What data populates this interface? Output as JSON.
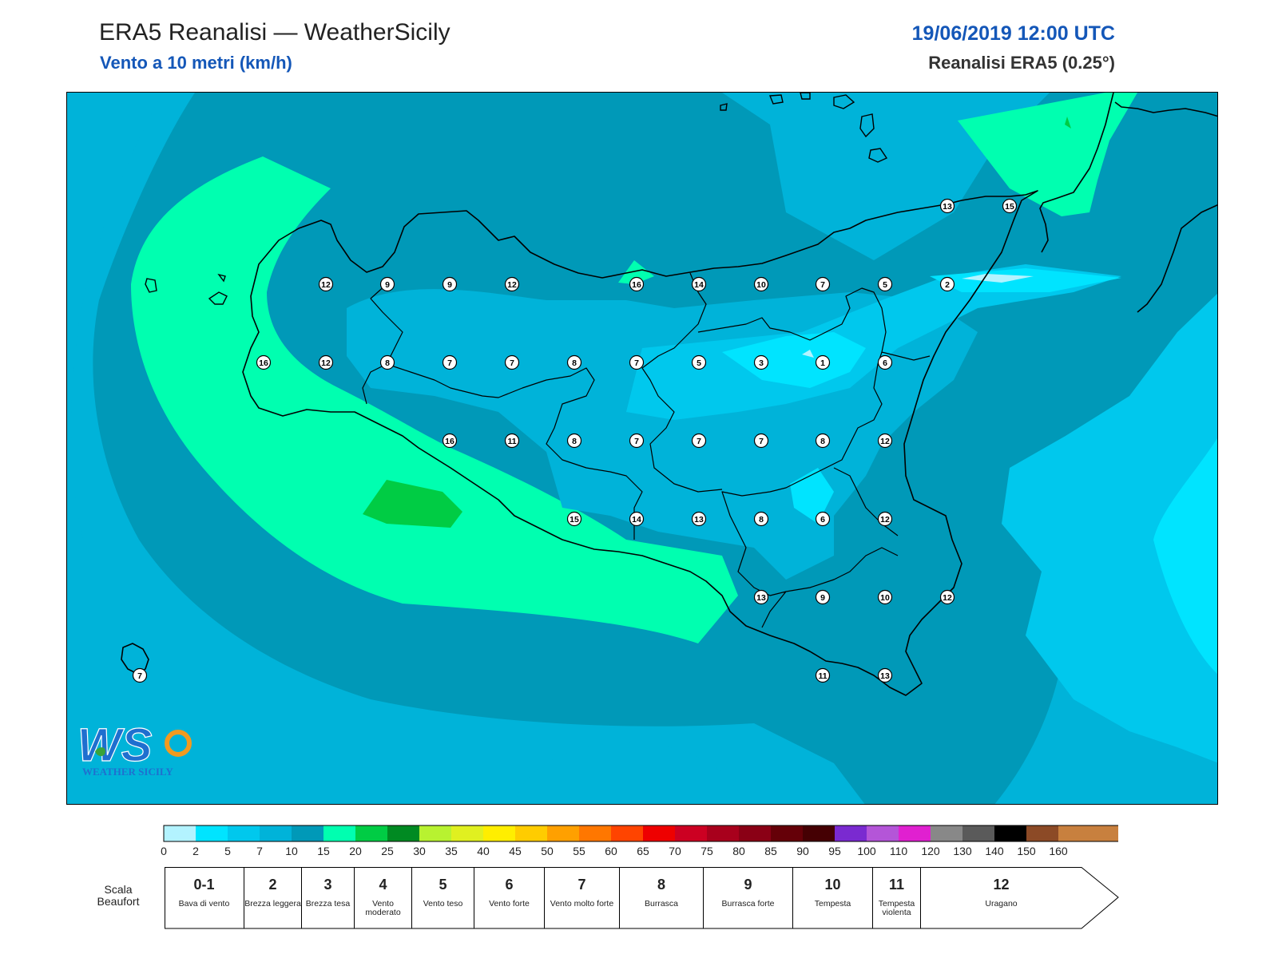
{
  "header": {
    "title": "ERA5 Reanalisi — WeatherSicily",
    "subtitle": "Vento a 10 metri (km/h)",
    "datetime": "19/06/2019 12:00 UTC",
    "model": "Reanalisi ERA5 (0.25°)"
  },
  "map": {
    "stations": [
      {
        "value": "12"
      },
      {
        "value": "9"
      },
      {
        "value": "9"
      },
      {
        "value": "12"
      },
      {
        "value": "16"
      },
      {
        "value": "14"
      },
      {
        "value": "10"
      },
      {
        "value": "7"
      },
      {
        "value": "5"
      },
      {
        "value": "2"
      },
      {
        "value": "16"
      },
      {
        "value": "12"
      },
      {
        "value": "8"
      },
      {
        "value": "7"
      },
      {
        "value": "7"
      },
      {
        "value": "8"
      },
      {
        "value": "7"
      },
      {
        "value": "5"
      },
      {
        "value": "3"
      },
      {
        "value": "1"
      },
      {
        "value": "6"
      },
      {
        "value": "16"
      },
      {
        "value": "11"
      },
      {
        "value": "8"
      },
      {
        "value": "7"
      },
      {
        "value": "7"
      },
      {
        "value": "7"
      },
      {
        "value": "8"
      },
      {
        "value": "12"
      },
      {
        "value": "15"
      },
      {
        "value": "14"
      },
      {
        "value": "13"
      },
      {
        "value": "8"
      },
      {
        "value": "6"
      },
      {
        "value": "12"
      },
      {
        "value": "13"
      },
      {
        "value": "9"
      },
      {
        "value": "10"
      },
      {
        "value": "12"
      },
      {
        "value": "11"
      },
      {
        "value": "13"
      },
      {
        "value": "13"
      },
      {
        "value": "15"
      },
      {
        "value": "7"
      }
    ]
  },
  "logo": {
    "letters": "WS",
    "caption": "WEATHER SICILY"
  },
  "colorbar": {
    "ticks": [
      "0",
      "2",
      "5",
      "7",
      "10",
      "15",
      "20",
      "25",
      "30",
      "35",
      "40",
      "45",
      "50",
      "55",
      "60",
      "65",
      "70",
      "75",
      "80",
      "85",
      "90",
      "95",
      "100",
      "110",
      "120",
      "130",
      "140",
      "150",
      "160"
    ],
    "colors": [
      "#b3f3ff",
      "#00e4ff",
      "#00c8ed",
      "#00b3d9",
      "#0099b8",
      "#00ffb0",
      "#00cc44",
      "#008a22",
      "#b8f230",
      "#e0f020",
      "#ffee00",
      "#ffcc00",
      "#ffa000",
      "#ff7700",
      "#ff4400",
      "#ee0000",
      "#cc0022",
      "#a8001c",
      "#8a0015",
      "#650008",
      "#450003",
      "#7a2ad0",
      "#b455d8",
      "#e020d0",
      "#888888",
      "#5a5a5a",
      "#000000",
      "#8c4a26",
      "#c8803e"
    ]
  },
  "beaufort": {
    "label": "Scala Beaufort",
    "classes": [
      {
        "num": "0-1",
        "name": "Bava di vento"
      },
      {
        "num": "2",
        "name": "Brezza leggera"
      },
      {
        "num": "3",
        "name": "Brezza tesa"
      },
      {
        "num": "4",
        "name": "Vento moderato"
      },
      {
        "num": "5",
        "name": "Vento teso"
      },
      {
        "num": "6",
        "name": "Vento forte"
      },
      {
        "num": "7",
        "name": "Vento molto forte"
      },
      {
        "num": "8",
        "name": "Burrasca"
      },
      {
        "num": "9",
        "name": "Burrasca forte"
      },
      {
        "num": "10",
        "name": "Tempesta"
      },
      {
        "num": "11",
        "name": "Tempesta violenta"
      },
      {
        "num": "12",
        "name": "Uragano"
      }
    ]
  }
}
